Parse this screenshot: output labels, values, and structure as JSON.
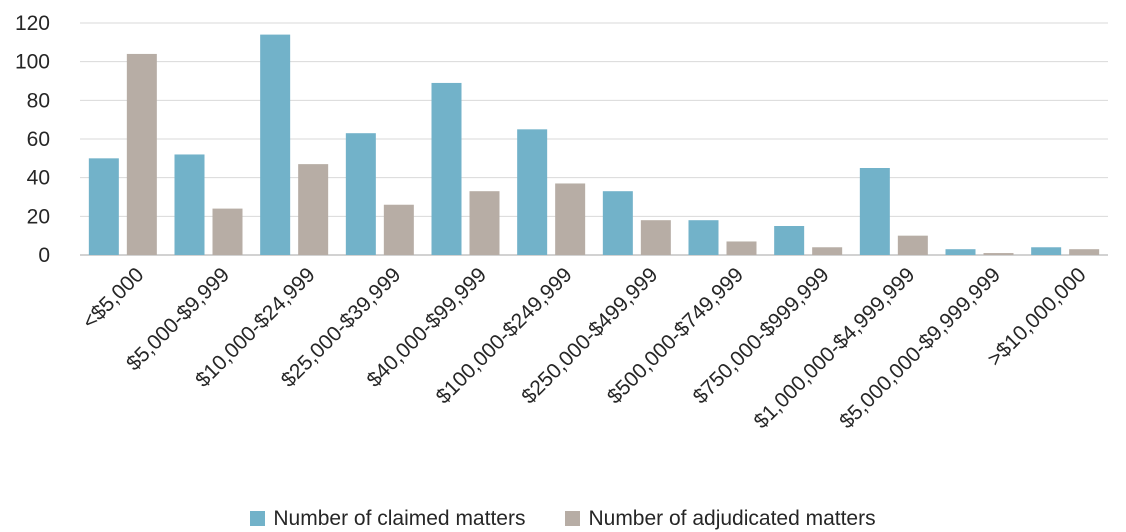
{
  "chart_data": {
    "type": "bar",
    "categories": [
      "<$5,000",
      "$5,000-$9,999",
      "$10,000-$24,999",
      "$25,000-$39,999",
      "$40,000-$99,999",
      "$100,000-$249,999",
      "$250,000-$499,999",
      "$500,000-$749,999",
      "$750,000-$999,999",
      "$1,000,000-$4,999,999",
      "$5,000,000-$9,999,999",
      ">$10,000,000"
    ],
    "series": [
      {
        "name": "Number of claimed matters",
        "color": "#72b2c9",
        "values": [
          50,
          52,
          114,
          63,
          89,
          65,
          33,
          18,
          15,
          45,
          3,
          4
        ]
      },
      {
        "name": "Number of adjudicated matters",
        "color": "#b7ada5",
        "values": [
          104,
          24,
          47,
          26,
          33,
          37,
          18,
          7,
          4,
          10,
          1,
          3
        ]
      }
    ],
    "yticks": [
      0,
      20,
      40,
      60,
      80,
      100,
      120
    ],
    "ylim": [
      0,
      120
    ],
    "grid": true,
    "legend_position": "bottom"
  }
}
